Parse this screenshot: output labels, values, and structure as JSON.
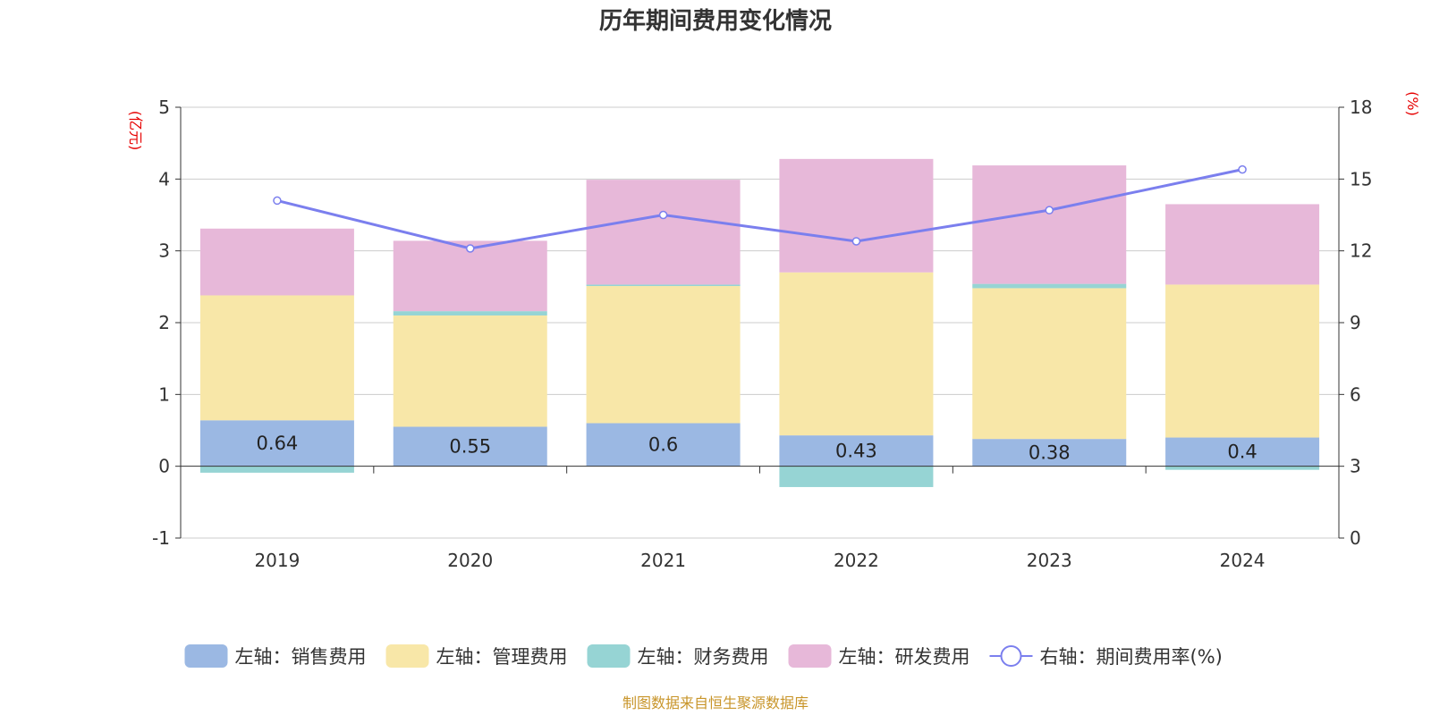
{
  "chart_data": {
    "type": "bar",
    "title": "历年期间费用变化情况",
    "categories": [
      "2019",
      "2020",
      "2021",
      "2022",
      "2023",
      "2024"
    ],
    "left_axis": {
      "unit": "(亿元)",
      "ticks": [
        "-1",
        "0",
        "1",
        "2",
        "3",
        "4",
        "5"
      ],
      "ylim": [
        -1,
        5
      ]
    },
    "right_axis": {
      "unit": "(%)",
      "ticks": [
        "0",
        "3",
        "6",
        "9",
        "12",
        "15",
        "18"
      ],
      "ylim": [
        0,
        18
      ]
    },
    "series": [
      {
        "name": "左轴：销售费用",
        "type": "bar",
        "axis": "left",
        "color": "#9bb8e3",
        "values": [
          0.64,
          0.55,
          0.6,
          0.43,
          0.38,
          0.4
        ],
        "labels": [
          "0.64",
          "0.55",
          "0.6",
          "0.43",
          "0.38",
          "0.4"
        ]
      },
      {
        "name": "左轴：管理费用",
        "type": "bar",
        "axis": "left",
        "color": "#f8e7a8",
        "values": [
          1.74,
          1.55,
          1.91,
          2.27,
          2.1,
          2.13
        ]
      },
      {
        "name": "左轴：财务费用",
        "type": "bar",
        "axis": "left",
        "color": "#96d4d4",
        "values": [
          -0.09,
          0.06,
          0.02,
          -0.29,
          0.06,
          -0.05
        ]
      },
      {
        "name": "左轴：研发费用",
        "type": "bar",
        "axis": "left",
        "color": "#e7b8d9",
        "values": [
          0.93,
          0.98,
          1.46,
          1.58,
          1.65,
          1.12
        ]
      },
      {
        "name": "右轴：期间费用率(%)",
        "type": "line",
        "axis": "right",
        "color": "#7b7fee",
        "values": [
          14.1,
          12.1,
          13.5,
          12.4,
          13.7,
          15.4
        ]
      }
    ],
    "legend_position": "bottom",
    "grid": true
  },
  "source": "制图数据来自恒生聚源数据库"
}
